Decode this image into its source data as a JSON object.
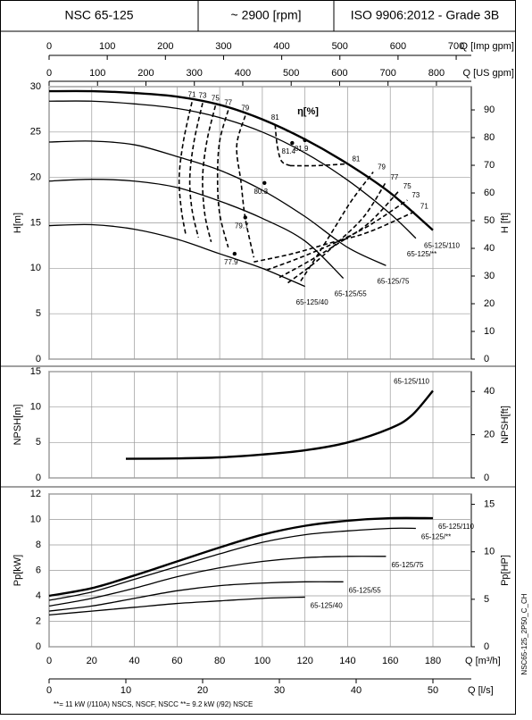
{
  "header": [
    "NSC 65-125",
    "~ 2900 [rpm]",
    "ISO 9906:2012 - Grade 3B"
  ],
  "footnote": "**= 11 kW (/110A) NSCS, NSCF, NSCC   **= 9.2 kW (/92) NSCE",
  "code": "NSC65-125_2P50_C_CH",
  "chart_data": [
    {
      "type": "line",
      "ylabel": "H[m]",
      "y2label": "H [ft]",
      "grid": true,
      "xlim": [
        0,
        198
      ],
      "xticks": [
        0,
        20,
        40,
        60,
        80,
        100,
        120,
        140,
        160,
        180
      ],
      "ylim": [
        0,
        30
      ],
      "yticks": [
        0,
        5,
        10,
        15,
        20,
        25,
        30
      ],
      "y2lim": [
        0,
        98.4
      ],
      "y2ticks": [
        0,
        10,
        20,
        30,
        40,
        50,
        60,
        70,
        80,
        90
      ],
      "top_axes": [
        {
          "label": "Q [Imp gpm]",
          "xlim": [
            0,
            726
          ],
          "xticks": [
            0,
            100,
            200,
            300,
            400,
            500,
            600,
            700
          ]
        },
        {
          "label": "Q [US gpm]",
          "xlim": [
            0,
            872
          ],
          "xticks": [
            0,
            100,
            200,
            300,
            400,
            500,
            600,
            700,
            800
          ]
        }
      ],
      "series": [
        {
          "name": "65-125/110",
          "color": "#000000",
          "line_width": 2.4,
          "x": [
            0,
            20,
            40,
            60,
            80,
            100,
            120,
            140,
            160,
            180
          ],
          "values": [
            29.5,
            29.5,
            29.3,
            28.9,
            28.0,
            26.4,
            24.2,
            21.5,
            18.3,
            14.2
          ]
        },
        {
          "name": "65-125/**",
          "color": "#000000",
          "line_width": 1.3,
          "x": [
            0,
            20,
            40,
            60,
            80,
            100,
            120,
            140,
            160,
            172
          ],
          "values": [
            28.4,
            28.4,
            28.1,
            27.6,
            26.6,
            25.0,
            22.7,
            19.7,
            16.0,
            13.3
          ]
        },
        {
          "name": "65-125/75",
          "color": "#000000",
          "line_width": 1.3,
          "x": [
            0,
            20,
            40,
            60,
            80,
            100,
            120,
            140,
            158
          ],
          "values": [
            23.9,
            24.0,
            23.6,
            22.3,
            20.8,
            18.6,
            15.7,
            12.3,
            10.3
          ]
        },
        {
          "name": "65-125/55",
          "color": "#000000",
          "line_width": 1.3,
          "x": [
            0,
            20,
            40,
            60,
            80,
            100,
            120,
            138
          ],
          "values": [
            19.6,
            19.8,
            19.6,
            18.9,
            17.4,
            15.5,
            13.0,
            8.9
          ]
        },
        {
          "name": "65-125/40",
          "color": "#000000",
          "line_width": 1.3,
          "x": [
            0,
            20,
            40,
            60,
            80,
            100,
            120
          ],
          "values": [
            14.7,
            14.8,
            14.3,
            13.2,
            11.6,
            10.0,
            8.0
          ]
        }
      ],
      "efficiency_label": "η[%]",
      "efficiency_lines": [
        {
          "name": "71",
          "x": [
            67,
            63,
            61,
            62,
            64
          ],
          "values": [
            28.3,
            24,
            20,
            16.5,
            13.8
          ]
        },
        {
          "name": "73",
          "x": [
            72,
            68,
            66,
            67,
            70
          ],
          "values": [
            28.2,
            24,
            20,
            16.5,
            13.4
          ]
        },
        {
          "name": "75",
          "x": [
            78,
            74,
            72,
            73,
            76
          ],
          "values": [
            27.9,
            24,
            20,
            16,
            12.9
          ]
        },
        {
          "name": "77",
          "x": [
            84,
            80,
            79,
            80,
            84
          ],
          "values": [
            27.4,
            24,
            20,
            16,
            12.3
          ]
        },
        {
          "name": "79",
          "x": [
            92,
            88,
            90,
            92,
            96
          ],
          "values": [
            26.8,
            23.5,
            19.5,
            15.5,
            11.2
          ]
        },
        {
          "name": "81",
          "x": [
            106,
            107,
            109,
            113
          ],
          "values": [
            25.8,
            23.5,
            21.8,
            21.3
          ]
        },
        {
          "name": "81",
          "x": [
            113,
            125,
            140
          ],
          "values": [
            21.3,
            21.3,
            21.5
          ]
        },
        {
          "name": "79",
          "x": [
            118,
            126,
            134,
            142,
            152
          ],
          "values": [
            8.6,
            11.5,
            14.5,
            17.5,
            20.6
          ]
        },
        {
          "name": "77",
          "x": [
            112,
            124,
            136,
            148,
            158
          ],
          "values": [
            8.4,
            10.5,
            13,
            15.8,
            19.5
          ]
        },
        {
          "name": "75",
          "x": [
            108,
            122,
            136,
            150,
            164
          ],
          "values": [
            9.0,
            10.8,
            12.8,
            15,
            18.5
          ]
        },
        {
          "name": "73",
          "x": [
            102,
            118,
            134,
            150,
            168
          ],
          "values": [
            9.8,
            11.2,
            12.8,
            14.7,
            17.5
          ]
        },
        {
          "name": "71",
          "x": [
            96,
            114,
            132,
            150,
            172
          ],
          "values": [
            10.7,
            11.6,
            12.8,
            14,
            16.3
          ]
        }
      ],
      "bep": {
        "x": [
          120,
          114,
          101,
          92,
          87
        ],
        "values": [
          24.1,
          23.8,
          19.4,
          15.6,
          11.6
        ],
        "eta": [
          81.9,
          81.4,
          80.3,
          79.7,
          77.9
        ]
      }
    },
    {
      "type": "line",
      "ylabel": "NPSH[m]",
      "y2label": "NPSH[ft]",
      "grid": true,
      "xlim": [
        0,
        198
      ],
      "xticks": [
        0,
        20,
        40,
        60,
        80,
        100,
        120,
        140,
        160,
        180
      ],
      "ylim": [
        0,
        15
      ],
      "yticks": [
        0,
        5,
        10,
        15
      ],
      "y2lim": [
        0,
        49.2
      ],
      "y2ticks": [
        0,
        20,
        40
      ],
      "series": [
        {
          "name": "65-125/110",
          "color": "#000000",
          "line_width": 2.4,
          "x": [
            36,
            60,
            80,
            100,
            120,
            140,
            160,
            170,
            180
          ],
          "values": [
            2.7,
            2.75,
            2.9,
            3.3,
            3.9,
            5.0,
            7.0,
            8.8,
            12.3
          ]
        }
      ]
    },
    {
      "type": "line",
      "ylabel": "Pp[kW]",
      "y2label": "Pp[HP]",
      "grid": true,
      "xlabel": "Q [m³/h]",
      "xlim": [
        0,
        198
      ],
      "xticks": [
        0,
        20,
        40,
        60,
        80,
        100,
        120,
        140,
        160,
        180
      ],
      "ylim": [
        0,
        12
      ],
      "yticks": [
        0,
        2,
        4,
        6,
        8,
        10,
        12
      ],
      "y2lim": [
        0,
        16.09
      ],
      "y2ticks": [
        0,
        5,
        10,
        15
      ],
      "bottom_axis": {
        "label": "Q [l/s]",
        "xlim": [
          0,
          55
        ],
        "xticks": [
          0,
          10,
          20,
          30,
          40,
          50
        ]
      },
      "series": [
        {
          "name": "65-125/110",
          "color": "#000000",
          "line_width": 2.4,
          "x": [
            0,
            20,
            40,
            60,
            80,
            100,
            120,
            140,
            160,
            180
          ],
          "values": [
            4.0,
            4.6,
            5.6,
            6.7,
            7.8,
            8.8,
            9.5,
            9.9,
            10.1,
            10.1
          ]
        },
        {
          "name": "65-125/**",
          "color": "#000000",
          "line_width": 1.3,
          "x": [
            0,
            20,
            40,
            60,
            80,
            100,
            120,
            140,
            160,
            172
          ],
          "values": [
            3.65,
            4.3,
            5.3,
            6.3,
            7.3,
            8.2,
            8.8,
            9.1,
            9.3,
            9.3
          ]
        },
        {
          "name": "65-125/75",
          "color": "#000000",
          "line_width": 1.3,
          "x": [
            0,
            20,
            40,
            60,
            80,
            100,
            120,
            140,
            158
          ],
          "values": [
            3.2,
            3.8,
            4.6,
            5.5,
            6.2,
            6.7,
            7.0,
            7.1,
            7.1
          ]
        },
        {
          "name": "65-125/55",
          "color": "#000000",
          "line_width": 1.3,
          "x": [
            0,
            20,
            40,
            60,
            80,
            100,
            120,
            138
          ],
          "values": [
            2.8,
            3.2,
            3.8,
            4.4,
            4.8,
            5.0,
            5.1,
            5.1
          ]
        },
        {
          "name": "65-125/40",
          "color": "#000000",
          "line_width": 1.3,
          "x": [
            0,
            20,
            40,
            60,
            80,
            100,
            120
          ],
          "values": [
            2.5,
            2.8,
            3.1,
            3.4,
            3.6,
            3.8,
            3.9
          ]
        }
      ]
    }
  ]
}
